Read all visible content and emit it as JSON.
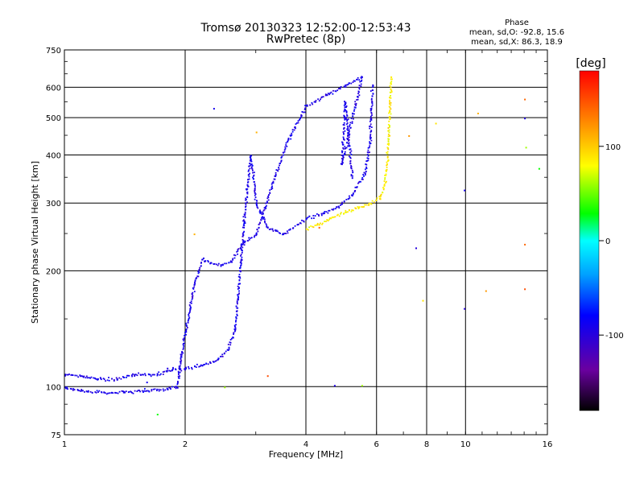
{
  "chart_data": {
    "type": "scatter",
    "title": "Tromsø 20130323 12:52:00-12:53:43",
    "subtitle": "RwPretec (8p)",
    "xlabel": "Frequency [MHz]",
    "ylabel": "Stationary phase Virtual Height [km]",
    "x_scale": "log",
    "y_scale": "log",
    "xlim": [
      1,
      16
    ],
    "ylim": [
      75,
      750
    ],
    "x_ticks": [
      1,
      2,
      4,
      6,
      8,
      10,
      16
    ],
    "x_tick_labels": [
      "1",
      "2",
      "4",
      "6",
      "8",
      "10",
      "16"
    ],
    "y_ticks": [
      75,
      100,
      200,
      300,
      400,
      500,
      600,
      750
    ],
    "y_tick_labels": [
      "75",
      "100",
      "200",
      "300",
      "400",
      "500",
      "600",
      "750"
    ],
    "grid": true,
    "stats": {
      "heading": "Phase",
      "line_o": "mean, sd,O: -92.8, 15.6",
      "line_x": "mean, sd,X: 86.3, 18.9"
    },
    "colorbar": {
      "label": "[deg]",
      "min": -180,
      "max": 180,
      "ticks": [
        100,
        0,
        -100
      ],
      "tick_labels": [
        "100",
        "0",
        "-100"
      ]
    },
    "traces": [
      {
        "mode": "O",
        "phase_mean": -92.8,
        "phase_sd": 15.6,
        "points": [
          [
            1.0,
            108
          ],
          [
            1.1,
            107
          ],
          [
            1.2,
            105
          ],
          [
            1.35,
            105
          ],
          [
            1.5,
            108
          ],
          [
            1.7,
            108
          ],
          [
            1.85,
            111
          ],
          [
            2.0,
            112
          ],
          [
            2.2,
            114
          ],
          [
            2.4,
            118
          ],
          [
            2.55,
            125
          ],
          [
            2.65,
            140
          ],
          [
            2.7,
            170
          ],
          [
            2.75,
            215
          ],
          [
            2.8,
            270
          ],
          [
            2.85,
            335
          ],
          [
            2.9,
            400
          ],
          [
            3.0,
            300
          ],
          [
            3.2,
            260
          ],
          [
            3.5,
            250
          ],
          [
            3.8,
            265
          ],
          [
            4.0,
            275
          ],
          [
            4.4,
            283
          ],
          [
            4.8,
            295
          ],
          [
            5.2,
            315
          ],
          [
            5.6,
            360
          ],
          [
            5.75,
            430
          ],
          [
            5.8,
            530
          ],
          [
            5.85,
            610
          ],
          [
            1.0,
            100
          ],
          [
            1.1,
            98
          ],
          [
            1.25,
            97
          ],
          [
            1.4,
            97
          ],
          [
            1.6,
            98
          ],
          [
            1.8,
            99
          ],
          [
            1.9,
            100
          ],
          [
            1.95,
            120
          ],
          [
            2.0,
            140
          ],
          [
            2.05,
            160
          ],
          [
            2.1,
            185
          ],
          [
            2.2,
            215
          ],
          [
            2.3,
            210
          ],
          [
            2.45,
            208
          ],
          [
            2.6,
            212
          ],
          [
            2.8,
            238
          ],
          [
            3.0,
            250
          ],
          [
            3.3,
            340
          ],
          [
            3.6,
            440
          ],
          [
            4.0,
            540
          ],
          [
            4.5,
            575
          ],
          [
            5.0,
            610
          ],
          [
            5.5,
            640
          ],
          [
            4.9,
            380
          ],
          [
            5.0,
            550
          ],
          [
            5.2,
            350
          ]
        ]
      },
      {
        "mode": "X",
        "phase_mean": 86.3,
        "phase_sd": 18.9,
        "points": [
          [
            4.0,
            258
          ],
          [
            4.3,
            265
          ],
          [
            4.6,
            275
          ],
          [
            5.0,
            285
          ],
          [
            5.4,
            293
          ],
          [
            5.8,
            300
          ],
          [
            6.1,
            310
          ],
          [
            6.25,
            335
          ],
          [
            6.35,
            380
          ],
          [
            6.4,
            430
          ],
          [
            6.45,
            520
          ],
          [
            6.5,
            640
          ]
        ]
      }
    ],
    "scatter_noise": [
      [
        2.35,
        530
      ],
      [
        3.0,
        460
      ],
      [
        4.3,
        260
      ],
      [
        4.7,
        101
      ],
      [
        5.5,
        101
      ],
      [
        3.2,
        107
      ],
      [
        1.7,
        85
      ],
      [
        7.2,
        450
      ],
      [
        7.5,
        230
      ],
      [
        8.4,
        485
      ],
      [
        9.9,
        325
      ],
      [
        10.7,
        515
      ],
      [
        14.0,
        560
      ],
      [
        14.0,
        500
      ],
      [
        14.1,
        420
      ],
      [
        14.0,
        180
      ],
      [
        15.2,
        370
      ],
      [
        11.2,
        178
      ],
      [
        9.9,
        160
      ],
      [
        7.8,
        168
      ],
      [
        1.6,
        103
      ],
      [
        2.1,
        250
      ],
      [
        14.0,
        235
      ],
      [
        1.8,
        112
      ],
      [
        2.5,
        100
      ]
    ]
  }
}
